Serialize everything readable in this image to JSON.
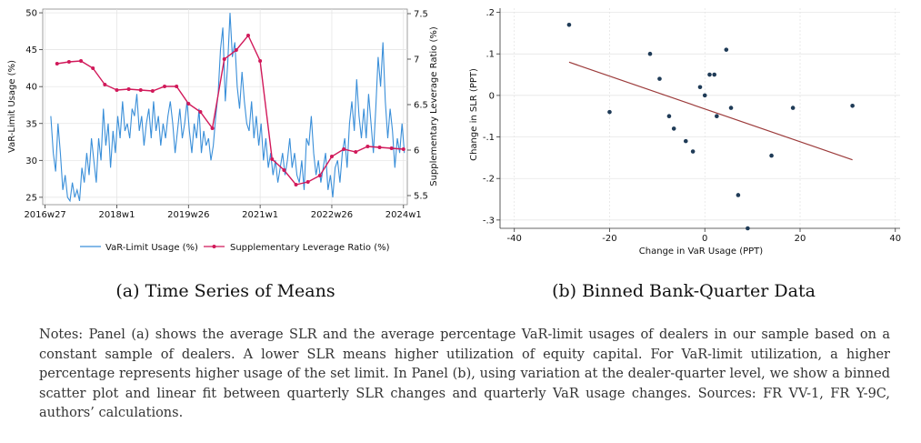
{
  "figure": {
    "caption_a": "(a) Time Series of Means",
    "caption_b": "(b) Binned Bank-Quarter Data",
    "notes": "Notes: Panel (a) shows the average SLR and the average percentage VaR-limit usages of dealers in our sample based on a constant sample of dealers. A lower SLR means higher utilization of equity capital. For VaR-limit utilization, a higher percentage represents higher usage of the set limit. In Panel (b), using variation at the dealer-quarter level, we show a binned scatter plot and linear fit between quarterly SLR changes and quarterly VaR usage changes. Sources: FR VV-1, FR Y-9C, authors’ calculations."
  },
  "colors": {
    "var_line": "#3a8fd9",
    "slr_line": "#d1195a",
    "scatter_dot": "#1f3b57",
    "fit_line": "#9c3b3b",
    "grid": "#e2e2e2"
  },
  "chart_data": [
    {
      "type": "line",
      "title": "",
      "xlabel": "",
      "ylabel": "VaR-Limit Usage (%)",
      "y2label": "Supplementary Leverage Ratio (%)",
      "xlim": [
        2016.45,
        2024.08
      ],
      "ylim": [
        24,
        50.5
      ],
      "y2lim": [
        5.4,
        7.55
      ],
      "x_ticks": [
        2016.5,
        2018.0,
        2019.5,
        2021.0,
        2022.5,
        2024.0
      ],
      "x_tick_labels": [
        "2016w27",
        "2018w1",
        "2019w26",
        "2021w1",
        "2022w26",
        "2024w1"
      ],
      "y_ticks": [
        25,
        30,
        35,
        40,
        45,
        50
      ],
      "y2_ticks": [
        5.5,
        6.0,
        6.5,
        7.0,
        7.5
      ],
      "y2_tick_labels": [
        "5.5",
        "6",
        "6.5",
        "7",
        "7.5"
      ],
      "legend_position": "bottom",
      "grid": true,
      "series": [
        {
          "name": "VaR-Limit Usage (%)",
          "axis": "left",
          "x": [
            2016.62,
            2016.67,
            2016.72,
            2016.77,
            2016.82,
            2016.87,
            2016.92,
            2016.97,
            2017.02,
            2017.07,
            2017.12,
            2017.17,
            2017.22,
            2017.27,
            2017.32,
            2017.37,
            2017.42,
            2017.47,
            2017.52,
            2017.57,
            2017.62,
            2017.67,
            2017.72,
            2017.77,
            2017.82,
            2017.87,
            2017.92,
            2017.97,
            2018.02,
            2018.07,
            2018.12,
            2018.17,
            2018.22,
            2018.27,
            2018.32,
            2018.37,
            2018.42,
            2018.47,
            2018.52,
            2018.57,
            2018.62,
            2018.67,
            2018.72,
            2018.77,
            2018.82,
            2018.87,
            2018.92,
            2018.97,
            2019.02,
            2019.07,
            2019.12,
            2019.17,
            2019.22,
            2019.27,
            2019.32,
            2019.37,
            2019.42,
            2019.47,
            2019.52,
            2019.57,
            2019.62,
            2019.67,
            2019.72,
            2019.77,
            2019.82,
            2019.87,
            2019.92,
            2019.97,
            2020.02,
            2020.07,
            2020.12,
            2020.17,
            2020.22,
            2020.27,
            2020.32,
            2020.37,
            2020.42,
            2020.47,
            2020.52,
            2020.57,
            2020.62,
            2020.67,
            2020.72,
            2020.77,
            2020.82,
            2020.87,
            2020.92,
            2020.97,
            2021.02,
            2021.07,
            2021.12,
            2021.17,
            2021.22,
            2021.27,
            2021.32,
            2021.37,
            2021.42,
            2021.47,
            2021.52,
            2021.57,
            2021.62,
            2021.67,
            2021.72,
            2021.77,
            2021.82,
            2021.87,
            2021.92,
            2021.97,
            2022.02,
            2022.07,
            2022.12,
            2022.17,
            2022.22,
            2022.27,
            2022.32,
            2022.37,
            2022.42,
            2022.47,
            2022.52,
            2022.57,
            2022.62,
            2022.67,
            2022.72,
            2022.77,
            2022.82,
            2022.87,
            2022.92,
            2022.97,
            2023.02,
            2023.07,
            2023.12,
            2023.17,
            2023.22,
            2023.27,
            2023.32,
            2023.37,
            2023.42,
            2023.47,
            2023.52,
            2023.57,
            2023.62,
            2023.67,
            2023.72,
            2023.77,
            2023.82,
            2023.87,
            2023.92,
            2023.97,
            2024.02
          ],
          "values": [
            36,
            31,
            28.5,
            35,
            31,
            26,
            28,
            25,
            24.5,
            27,
            25,
            26,
            24.5,
            29,
            27,
            31,
            28,
            33,
            30,
            27,
            33,
            30,
            37,
            32,
            35,
            29,
            34,
            31,
            36,
            33,
            38,
            34,
            35,
            33,
            37,
            36,
            39,
            34,
            36,
            32,
            35,
            37,
            33,
            38,
            34,
            36,
            32,
            35,
            33,
            36,
            38,
            35,
            31,
            34,
            37,
            33,
            35,
            38,
            34,
            31,
            35,
            33,
            37,
            31,
            34,
            32,
            33,
            30,
            32,
            36,
            39,
            45,
            48,
            38,
            43,
            50,
            44,
            46,
            40,
            37,
            42,
            38,
            35,
            34,
            38,
            33,
            36,
            32,
            35,
            30,
            33,
            29,
            31,
            28,
            30,
            27,
            29,
            31,
            28,
            30,
            33,
            29,
            31,
            28,
            27,
            30,
            26,
            33,
            32,
            36,
            31,
            28,
            30,
            27,
            29,
            31,
            26,
            28,
            25,
            29,
            30,
            27,
            31,
            33,
            29,
            35,
            38,
            34,
            41,
            36,
            33,
            37,
            33,
            39,
            35,
            31,
            37,
            44,
            40,
            46,
            38,
            33,
            37,
            34,
            29,
            33,
            31,
            35,
            31
          ]
        },
        {
          "name": "Supplementary Leverage Ratio (%)",
          "axis": "right",
          "x": [
            2016.75,
            2017.0,
            2017.25,
            2017.5,
            2017.75,
            2018.0,
            2018.25,
            2018.5,
            2018.75,
            2019.0,
            2019.25,
            2019.5,
            2019.75,
            2020.0,
            2020.25,
            2020.5,
            2020.75,
            2021.0,
            2021.25,
            2021.5,
            2021.75,
            2022.0,
            2022.25,
            2022.5,
            2022.75,
            2023.0,
            2023.25,
            2023.5,
            2023.75,
            2024.0
          ],
          "values": [
            6.95,
            6.97,
            6.98,
            6.9,
            6.72,
            6.66,
            6.67,
            6.66,
            6.65,
            6.7,
            6.7,
            6.51,
            6.42,
            6.24,
            7.0,
            7.1,
            7.26,
            6.98,
            5.9,
            5.78,
            5.62,
            5.65,
            5.72,
            5.93,
            6.01,
            5.98,
            6.04,
            6.03,
            6.02,
            6.01
          ]
        }
      ]
    },
    {
      "type": "scatter",
      "title": "",
      "xlabel": "Change in VaR Usage (PPT)",
      "ylabel": "Change in SLR (PPT)",
      "xlim": [
        -43,
        41
      ],
      "ylim": [
        -0.32,
        0.21
      ],
      "x_ticks": [
        -40,
        -20,
        0,
        20,
        40
      ],
      "x_tick_labels": [
        "-40",
        "-20",
        "0",
        "20",
        "40"
      ],
      "y_ticks": [
        0.2,
        0.1,
        0,
        -0.1,
        -0.2,
        -0.3
      ],
      "y_tick_labels": [
        ".2",
        ".1",
        "0",
        "-.1",
        "-.2",
        "-.3"
      ],
      "grid": true,
      "points": {
        "x": [
          -28.5,
          -20,
          -11.5,
          -9.5,
          -7.5,
          -6.5,
          -4,
          -2.5,
          -1,
          0,
          1,
          2,
          2.5,
          4.5,
          5.5,
          7,
          9,
          14,
          18.5,
          31
        ],
        "y": [
          0.17,
          -0.04,
          0.1,
          0.04,
          -0.05,
          -0.08,
          -0.11,
          -0.135,
          0.02,
          0.0,
          0.05,
          0.05,
          -0.05,
          0.11,
          -0.03,
          -0.24,
          -0.32,
          -0.145,
          -0.03,
          -0.025
        ]
      },
      "fit_line": {
        "x": [
          -28.5,
          31
        ],
        "y": [
          0.08,
          -0.155
        ]
      }
    }
  ]
}
